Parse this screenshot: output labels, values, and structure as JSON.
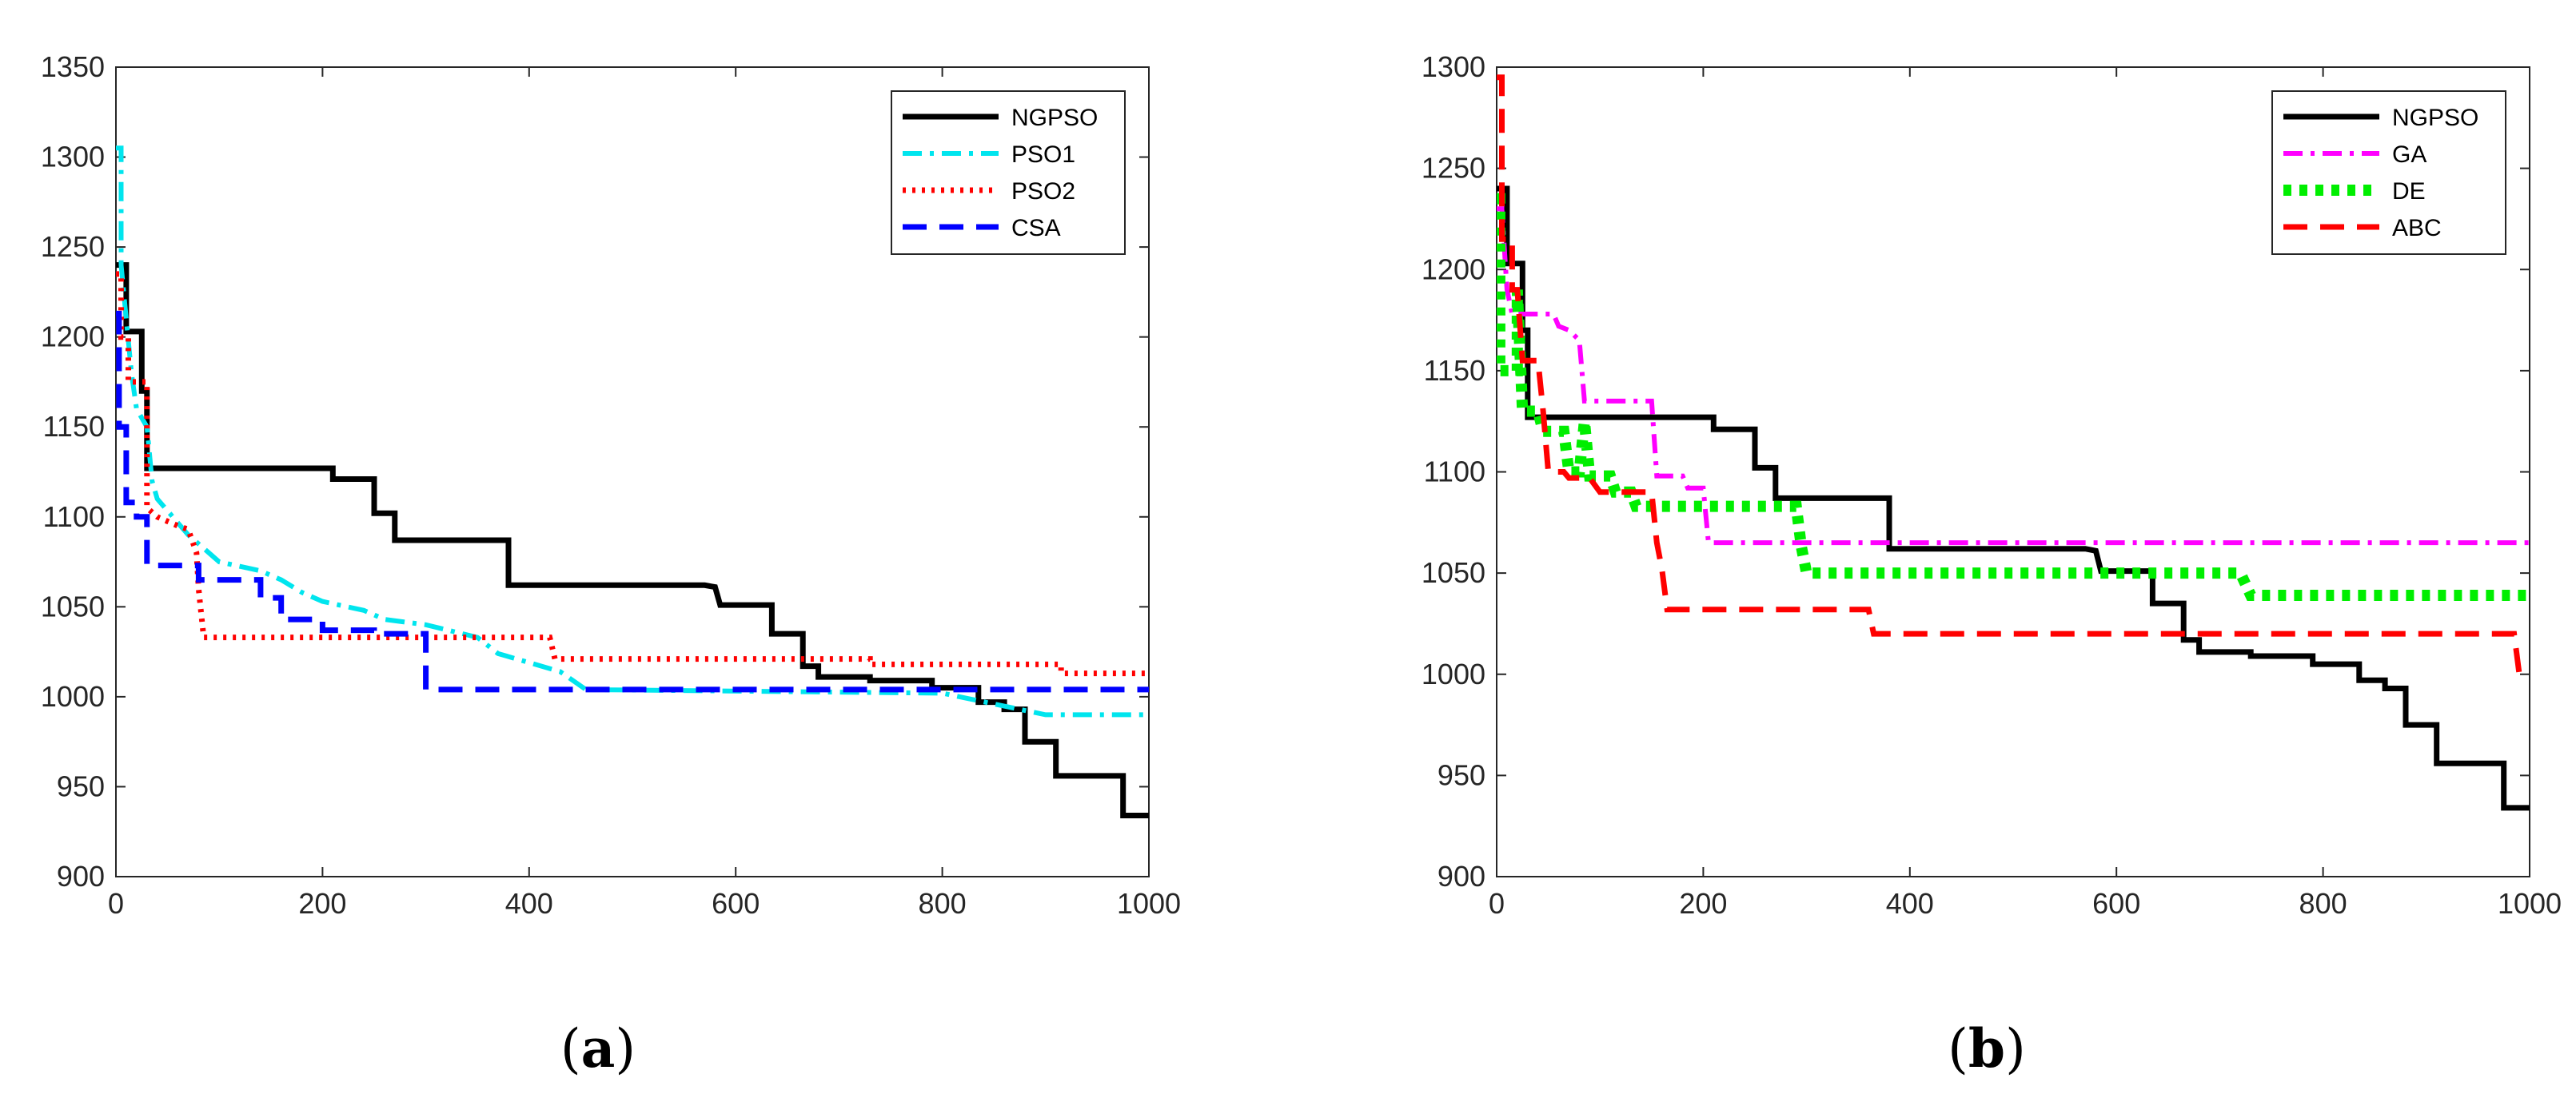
{
  "chart_data": [
    {
      "panel": "a",
      "caption_letter": "a",
      "type": "line",
      "xlim": [
        0,
        1000
      ],
      "ylim": [
        900,
        1350
      ],
      "xticks": [
        "0",
        "200",
        "400",
        "600",
        "800",
        "1000"
      ],
      "yticks": [
        "900",
        "950",
        "1000",
        "1050",
        "1100",
        "1150",
        "1200",
        "1250",
        "1300",
        "1350"
      ],
      "legend_position": "top-right",
      "series": [
        {
          "name": "NGPSO",
          "color": "#000000",
          "style": "solid",
          "points": [
            [
              0,
              1240
            ],
            [
              10,
              1240
            ],
            [
              10,
              1203
            ],
            [
              25,
              1203
            ],
            [
              25,
              1170
            ],
            [
              30,
              1170
            ],
            [
              30,
              1127
            ],
            [
              210,
              1127
            ],
            [
              210,
              1121
            ],
            [
              250,
              1121
            ],
            [
              250,
              1102
            ],
            [
              270,
              1102
            ],
            [
              270,
              1087
            ],
            [
              380,
              1087
            ],
            [
              380,
              1062
            ],
            [
              570,
              1062
            ],
            [
              580,
              1061
            ],
            [
              585,
              1051
            ],
            [
              635,
              1051
            ],
            [
              635,
              1035
            ],
            [
              665,
              1035
            ],
            [
              665,
              1017
            ],
            [
              680,
              1017
            ],
            [
              680,
              1011
            ],
            [
              730,
              1011
            ],
            [
              730,
              1009
            ],
            [
              790,
              1009
            ],
            [
              790,
              1005
            ],
            [
              835,
              1005
            ],
            [
              835,
              997
            ],
            [
              860,
              997
            ],
            [
              860,
              993
            ],
            [
              880,
              993
            ],
            [
              880,
              975
            ],
            [
              910,
              975
            ],
            [
              910,
              956
            ],
            [
              975,
              956
            ],
            [
              975,
              934
            ],
            [
              1000,
              934
            ]
          ]
        },
        {
          "name": "PSO1",
          "color": "#00e5ee",
          "style": "dashdot",
          "points": [
            [
              0,
              1305
            ],
            [
              5,
              1305
            ],
            [
              5,
              1240
            ],
            [
              10,
              1210
            ],
            [
              15,
              1180
            ],
            [
              20,
              1160
            ],
            [
              30,
              1150
            ],
            [
              35,
              1120
            ],
            [
              40,
              1110
            ],
            [
              55,
              1100
            ],
            [
              70,
              1090
            ],
            [
              90,
              1080
            ],
            [
              100,
              1075
            ],
            [
              140,
              1070
            ],
            [
              160,
              1065
            ],
            [
              180,
              1058
            ],
            [
              200,
              1053
            ],
            [
              240,
              1048
            ],
            [
              260,
              1043
            ],
            [
              300,
              1040
            ],
            [
              350,
              1033
            ],
            [
              370,
              1024
            ],
            [
              430,
              1014
            ],
            [
              455,
              1004
            ],
            [
              800,
              1002
            ],
            [
              900,
              990
            ],
            [
              1000,
              990
            ]
          ]
        },
        {
          "name": "PSO2",
          "color": "#ff0000",
          "style": "dotted",
          "points": [
            [
              0,
              1235
            ],
            [
              5,
              1235
            ],
            [
              5,
              1200
            ],
            [
              12,
              1200
            ],
            [
              12,
              1175
            ],
            [
              20,
              1175
            ],
            [
              30,
              1175
            ],
            [
              30,
              1105
            ],
            [
              40,
              1100
            ],
            [
              60,
              1095
            ],
            [
              70,
              1093
            ],
            [
              78,
              1080
            ],
            [
              80,
              1060
            ],
            [
              85,
              1033
            ],
            [
              420,
              1033
            ],
            [
              425,
              1021
            ],
            [
              730,
              1021
            ],
            [
              730,
              1018
            ],
            [
              915,
              1018
            ],
            [
              915,
              1013
            ],
            [
              1000,
              1013
            ]
          ]
        },
        {
          "name": "CSA",
          "color": "#0000ff",
          "style": "dashed",
          "points": [
            [
              0,
              1213
            ],
            [
              3,
              1213
            ],
            [
              3,
              1150
            ],
            [
              10,
              1150
            ],
            [
              10,
              1108
            ],
            [
              20,
              1108
            ],
            [
              20,
              1100
            ],
            [
              30,
              1100
            ],
            [
              30,
              1073
            ],
            [
              80,
              1073
            ],
            [
              80,
              1065
            ],
            [
              140,
              1065
            ],
            [
              140,
              1055
            ],
            [
              160,
              1055
            ],
            [
              160,
              1043
            ],
            [
              200,
              1043
            ],
            [
              200,
              1037
            ],
            [
              250,
              1037
            ],
            [
              250,
              1035
            ],
            [
              300,
              1035
            ],
            [
              300,
              1004
            ],
            [
              1000,
              1004
            ]
          ]
        }
      ]
    },
    {
      "panel": "b",
      "caption_letter": "b",
      "type": "line",
      "xlim": [
        0,
        1000
      ],
      "ylim": [
        900,
        1300
      ],
      "xticks": [
        "0",
        "200",
        "400",
        "600",
        "800",
        "1000"
      ],
      "yticks": [
        "900",
        "950",
        "1000",
        "1050",
        "1100",
        "1150",
        "1200",
        "1250",
        "1300"
      ],
      "legend_position": "top-right",
      "series": [
        {
          "name": "NGPSO",
          "color": "#000000",
          "style": "solid",
          "points": [
            [
              0,
              1240
            ],
            [
              10,
              1240
            ],
            [
              10,
              1203
            ],
            [
              25,
              1203
            ],
            [
              25,
              1170
            ],
            [
              30,
              1170
            ],
            [
              30,
              1127
            ],
            [
              210,
              1127
            ],
            [
              210,
              1121
            ],
            [
              250,
              1121
            ],
            [
              250,
              1102
            ],
            [
              270,
              1102
            ],
            [
              270,
              1087
            ],
            [
              380,
              1087
            ],
            [
              380,
              1062
            ],
            [
              570,
              1062
            ],
            [
              580,
              1061
            ],
            [
              585,
              1051
            ],
            [
              635,
              1051
            ],
            [
              635,
              1035
            ],
            [
              665,
              1035
            ],
            [
              665,
              1017
            ],
            [
              680,
              1017
            ],
            [
              680,
              1011
            ],
            [
              730,
              1011
            ],
            [
              730,
              1009
            ],
            [
              790,
              1009
            ],
            [
              790,
              1005
            ],
            [
              835,
              1005
            ],
            [
              835,
              997
            ],
            [
              860,
              997
            ],
            [
              860,
              993
            ],
            [
              880,
              993
            ],
            [
              880,
              975
            ],
            [
              910,
              975
            ],
            [
              910,
              956
            ],
            [
              975,
              956
            ],
            [
              975,
              934
            ],
            [
              1000,
              934
            ]
          ]
        },
        {
          "name": "GA",
          "color": "#ff00ff",
          "style": "dashdot",
          "points": [
            [
              0,
              1230
            ],
            [
              5,
              1230
            ],
            [
              10,
              1190
            ],
            [
              15,
              1178
            ],
            [
              55,
              1178
            ],
            [
              60,
              1172
            ],
            [
              70,
              1170
            ],
            [
              80,
              1165
            ],
            [
              85,
              1135
            ],
            [
              150,
              1135
            ],
            [
              155,
              1098
            ],
            [
              180,
              1098
            ],
            [
              185,
              1092
            ],
            [
              200,
              1092
            ],
            [
              205,
              1065
            ],
            [
              1000,
              1065
            ]
          ]
        },
        {
          "name": "DE",
          "color": "#00ee00",
          "style": "dotted",
          "points": [
            [
              0,
              1235
            ],
            [
              3,
              1235
            ],
            [
              3,
              1150
            ],
            [
              20,
              1150
            ],
            [
              20,
              1190
            ],
            [
              25,
              1130
            ],
            [
              40,
              1130
            ],
            [
              45,
              1120
            ],
            [
              65,
              1120
            ],
            [
              70,
              1100
            ],
            [
              80,
              1100
            ],
            [
              85,
              1125
            ],
            [
              90,
              1098
            ],
            [
              110,
              1098
            ],
            [
              115,
              1090
            ],
            [
              130,
              1090
            ],
            [
              135,
              1083
            ],
            [
              290,
              1083
            ],
            [
              295,
              1063
            ],
            [
              300,
              1050
            ],
            [
              720,
              1050
            ],
            [
              730,
              1039
            ],
            [
              1000,
              1039
            ]
          ]
        },
        {
          "name": "ABC",
          "color": "#ff0000",
          "style": "dashed",
          "points": [
            [
              0,
              1295
            ],
            [
              5,
              1295
            ],
            [
              5,
              1215
            ],
            [
              15,
              1215
            ],
            [
              15,
              1190
            ],
            [
              20,
              1190
            ],
            [
              25,
              1155
            ],
            [
              40,
              1155
            ],
            [
              45,
              1130
            ],
            [
              50,
              1100
            ],
            [
              65,
              1100
            ],
            [
              70,
              1097
            ],
            [
              90,
              1097
            ],
            [
              100,
              1090
            ],
            [
              150,
              1090
            ],
            [
              155,
              1065
            ],
            [
              160,
              1052
            ],
            [
              165,
              1032
            ],
            [
              360,
              1032
            ],
            [
              365,
              1020
            ],
            [
              985,
              1020
            ],
            [
              990,
              1000
            ],
            [
              1000,
              1000
            ]
          ]
        }
      ]
    }
  ]
}
